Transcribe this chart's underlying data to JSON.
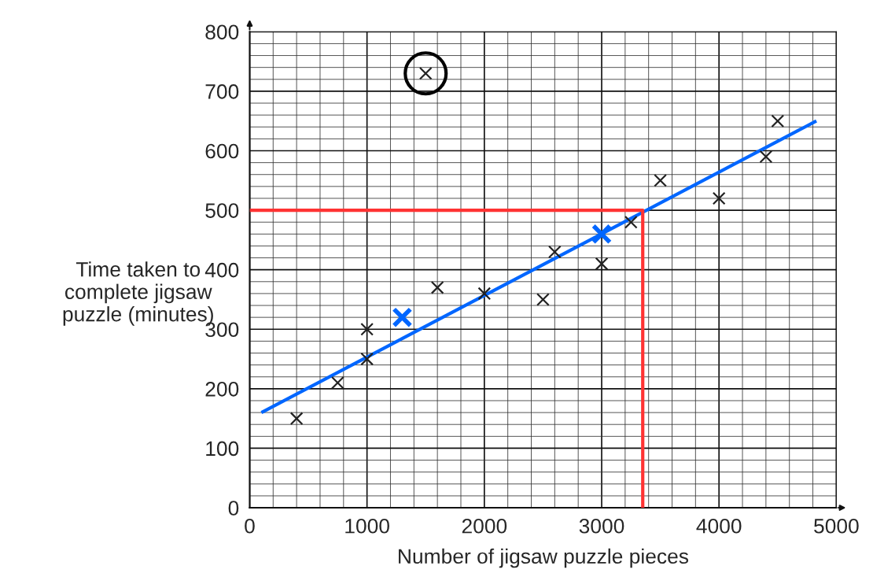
{
  "chart_data": {
    "type": "scatter",
    "xlabel": "Number of jigsaw puzzle pieces",
    "ylabel": "Time taken to\ncomplete jigsaw\npuzzle (minutes)",
    "xlim": [
      0,
      5000
    ],
    "ylim": [
      0,
      800
    ],
    "xticks": [
      0,
      1000,
      2000,
      3000,
      4000,
      5000
    ],
    "yticks": [
      0,
      100,
      200,
      300,
      400,
      500,
      600,
      700,
      800
    ],
    "grid": true,
    "marker": "cross",
    "series": [
      {
        "color": "#222222",
        "x": [
          400,
          750,
          1000,
          1000,
          1500,
          1600,
          2000,
          2500,
          2600,
          3000,
          3250,
          3500,
          4000,
          4400,
          4500
        ],
        "values": [
          150,
          210,
          300,
          250,
          730,
          370,
          360,
          350,
          430,
          410,
          480,
          550,
          520,
          590,
          650
        ]
      },
      {
        "color": "#000000",
        "marker": "circle",
        "x": [
          1500
        ],
        "values": [
          730
        ]
      },
      {
        "type": "line",
        "color": "#0066ff",
        "marker": "none",
        "x": [
          100,
          4830
        ],
        "values": [
          160,
          650
        ]
      },
      {
        "type": "line",
        "color": "#ff3333",
        "marker": "none",
        "x": [
          0,
          3350,
          3350
        ],
        "values": [
          500,
          500,
          0
        ]
      },
      {
        "color": "#0066ff",
        "x": [
          1300,
          3000
        ],
        "values": [
          320,
          460
        ]
      }
    ]
  }
}
